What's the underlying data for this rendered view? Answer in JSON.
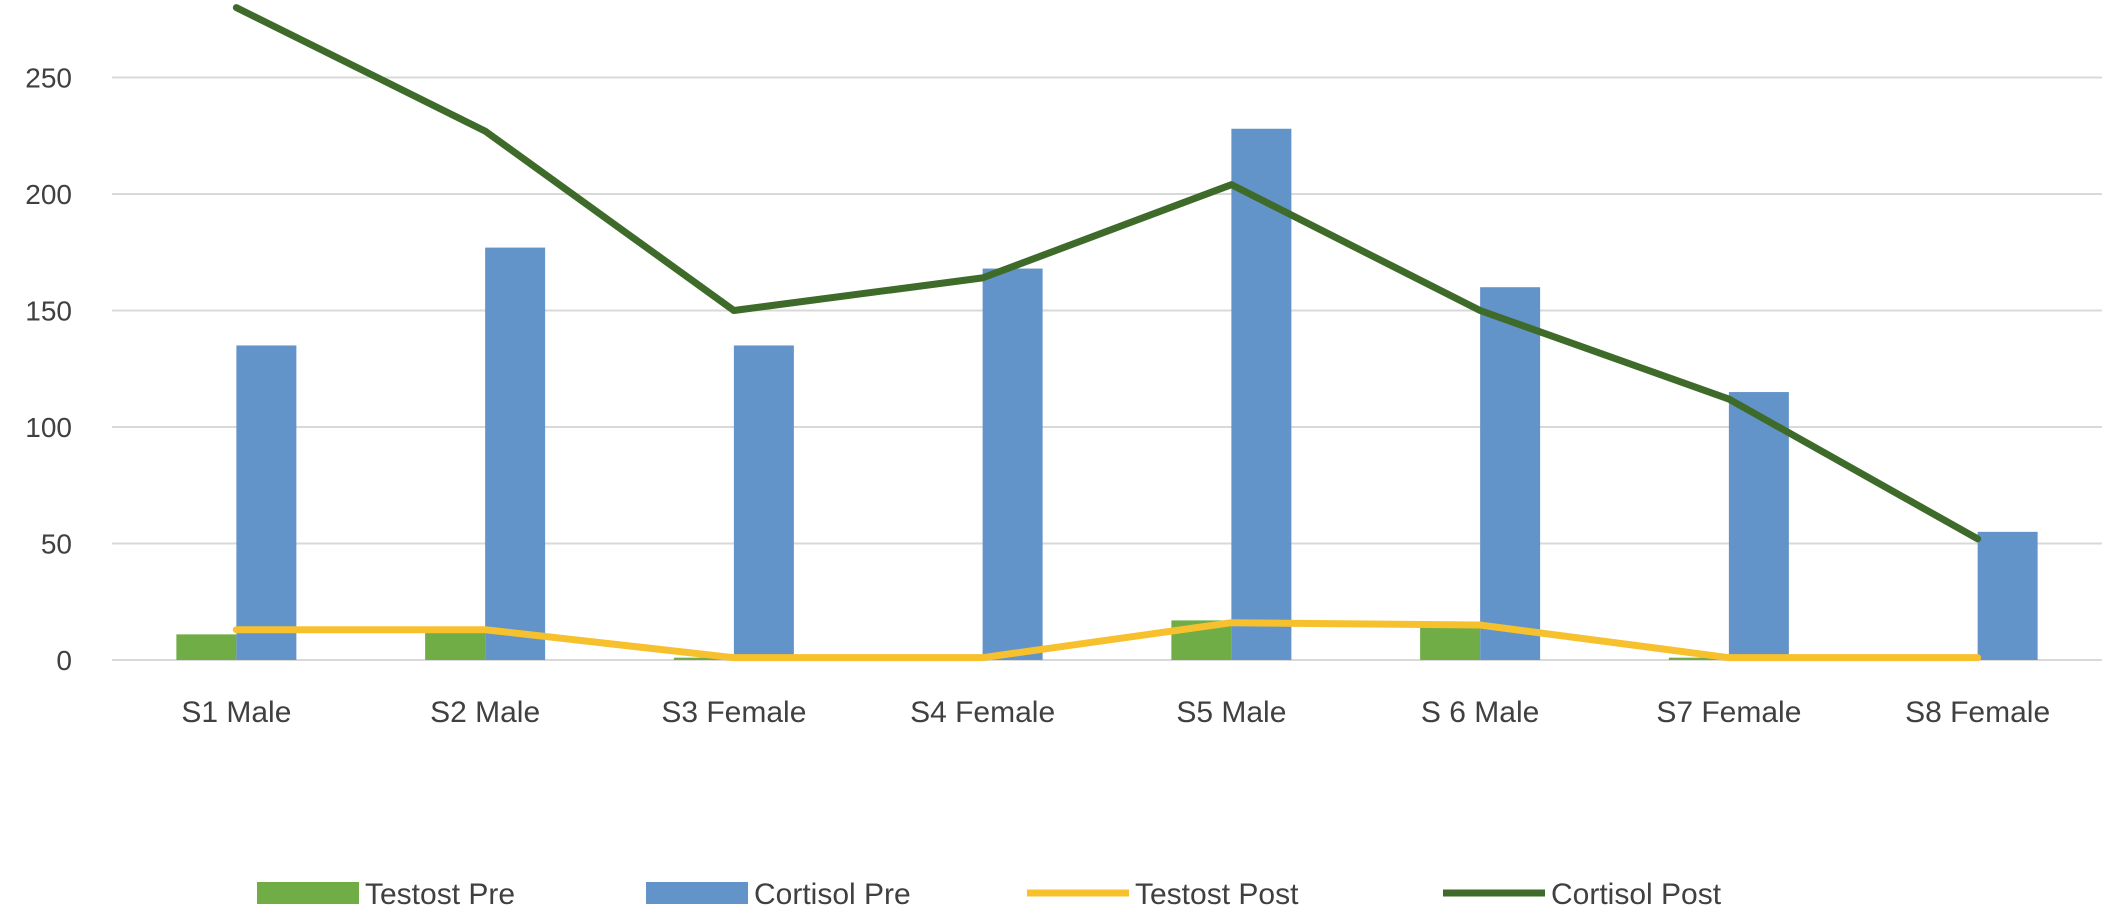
{
  "chart_data": {
    "type": "bar",
    "categories": [
      "S1 Male",
      "S2 Male",
      "S3 Female",
      "S4 Female",
      "S5 Male",
      "S 6 Male",
      "S7 Female",
      "S8 Female"
    ],
    "y_ticks": [
      "0",
      "50",
      "100",
      "150",
      "200",
      "250"
    ],
    "ylim": [
      0,
      280
    ],
    "grid": true,
    "legend_position": "bottom",
    "series": [
      {
        "name": "Testost Pre",
        "type": "bar",
        "color": "#70ad47",
        "values": [
          11,
          13,
          1,
          0,
          17,
          15,
          1,
          0
        ]
      },
      {
        "name": "Cortisol Pre",
        "type": "bar",
        "color": "#6394c9",
        "values": [
          135,
          177,
          135,
          168,
          228,
          160,
          115,
          55
        ]
      },
      {
        "name": "Testost Post",
        "type": "line",
        "color": "#f7c12d",
        "values": [
          13,
          13,
          1,
          1,
          16,
          15,
          1,
          1
        ]
      },
      {
        "name": "Cortisol Post",
        "type": "line",
        "color": "#3e6b2a",
        "values": [
          280,
          227,
          150,
          164,
          204,
          150,
          112,
          52
        ]
      }
    ]
  }
}
